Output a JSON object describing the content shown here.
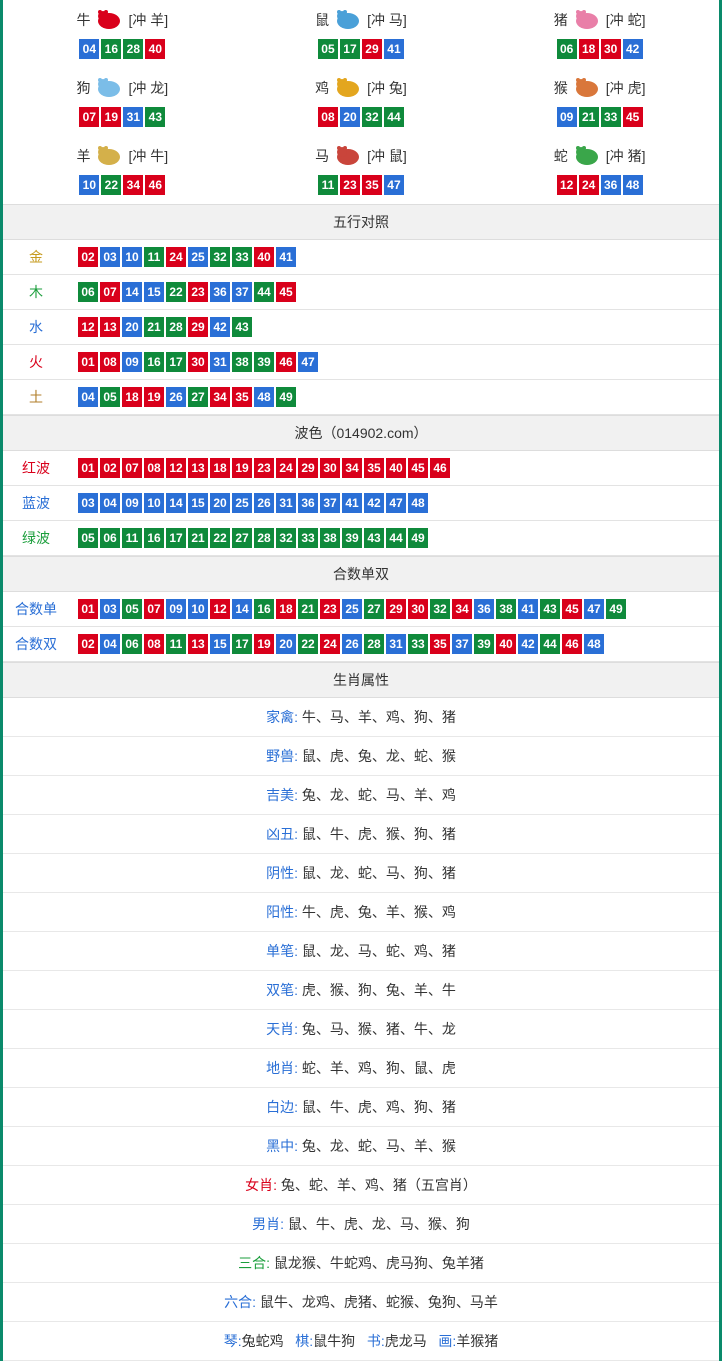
{
  "colors": {
    "red": "#d9001b",
    "blue": "#2a6fd6",
    "green": "#0f8a3b",
    "border": "#0a8a6b"
  },
  "zodiac": [
    {
      "name": "牛",
      "conflict": "[冲 羊]",
      "icon": "ox",
      "iconColor": "#d9001b",
      "nums": [
        {
          "n": "04",
          "c": "b"
        },
        {
          "n": "16",
          "c": "g"
        },
        {
          "n": "28",
          "c": "g"
        },
        {
          "n": "40",
          "c": "r"
        }
      ]
    },
    {
      "name": "鼠",
      "conflict": "[冲 马]",
      "icon": "rat",
      "iconColor": "#4aa0d8",
      "nums": [
        {
          "n": "05",
          "c": "g"
        },
        {
          "n": "17",
          "c": "g"
        },
        {
          "n": "29",
          "c": "r"
        },
        {
          "n": "41",
          "c": "b"
        }
      ]
    },
    {
      "name": "猪",
      "conflict": "[冲 蛇]",
      "icon": "pig",
      "iconColor": "#e97fa8",
      "nums": [
        {
          "n": "06",
          "c": "g"
        },
        {
          "n": "18",
          "c": "r"
        },
        {
          "n": "30",
          "c": "r"
        },
        {
          "n": "42",
          "c": "b"
        }
      ]
    },
    {
      "name": "狗",
      "conflict": "[冲 龙]",
      "icon": "dog",
      "iconColor": "#7bbde8",
      "nums": [
        {
          "n": "07",
          "c": "r"
        },
        {
          "n": "19",
          "c": "r"
        },
        {
          "n": "31",
          "c": "b"
        },
        {
          "n": "43",
          "c": "g"
        }
      ]
    },
    {
      "name": "鸡",
      "conflict": "[冲 兔]",
      "icon": "rooster",
      "iconColor": "#e3a61f",
      "nums": [
        {
          "n": "08",
          "c": "r"
        },
        {
          "n": "20",
          "c": "b"
        },
        {
          "n": "32",
          "c": "g"
        },
        {
          "n": "44",
          "c": "g"
        }
      ]
    },
    {
      "name": "猴",
      "conflict": "[冲 虎]",
      "icon": "monkey",
      "iconColor": "#d9773b",
      "nums": [
        {
          "n": "09",
          "c": "b"
        },
        {
          "n": "21",
          "c": "g"
        },
        {
          "n": "33",
          "c": "g"
        },
        {
          "n": "45",
          "c": "r"
        }
      ]
    },
    {
      "name": "羊",
      "conflict": "[冲 牛]",
      "icon": "goat",
      "iconColor": "#d4b04a",
      "nums": [
        {
          "n": "10",
          "c": "b"
        },
        {
          "n": "22",
          "c": "g"
        },
        {
          "n": "34",
          "c": "r"
        },
        {
          "n": "46",
          "c": "r"
        }
      ]
    },
    {
      "name": "马",
      "conflict": "[冲 鼠]",
      "icon": "horse",
      "iconColor": "#c9453b",
      "nums": [
        {
          "n": "11",
          "c": "g"
        },
        {
          "n": "23",
          "c": "r"
        },
        {
          "n": "35",
          "c": "r"
        },
        {
          "n": "47",
          "c": "b"
        }
      ]
    },
    {
      "name": "蛇",
      "conflict": "[冲 猪]",
      "icon": "snake",
      "iconColor": "#3aa64a",
      "nums": [
        {
          "n": "12",
          "c": "r"
        },
        {
          "n": "24",
          "c": "r"
        },
        {
          "n": "36",
          "c": "b"
        },
        {
          "n": "48",
          "c": "b"
        }
      ]
    }
  ],
  "sections": {
    "wuxing": {
      "title": "五行对照",
      "rows": [
        {
          "label": "金",
          "labelClass": "gold",
          "nums": [
            {
              "n": "02",
              "c": "r"
            },
            {
              "n": "03",
              "c": "b"
            },
            {
              "n": "10",
              "c": "b"
            },
            {
              "n": "11",
              "c": "g"
            },
            {
              "n": "24",
              "c": "r"
            },
            {
              "n": "25",
              "c": "b"
            },
            {
              "n": "32",
              "c": "g"
            },
            {
              "n": "33",
              "c": "g"
            },
            {
              "n": "40",
              "c": "r"
            },
            {
              "n": "41",
              "c": "b"
            }
          ]
        },
        {
          "label": "木",
          "labelClass": "wood",
          "nums": [
            {
              "n": "06",
              "c": "g"
            },
            {
              "n": "07",
              "c": "r"
            },
            {
              "n": "14",
              "c": "b"
            },
            {
              "n": "15",
              "c": "b"
            },
            {
              "n": "22",
              "c": "g"
            },
            {
              "n": "23",
              "c": "r"
            },
            {
              "n": "36",
              "c": "b"
            },
            {
              "n": "37",
              "c": "b"
            },
            {
              "n": "44",
              "c": "g"
            },
            {
              "n": "45",
              "c": "r"
            }
          ]
        },
        {
          "label": "水",
          "labelClass": "water",
          "nums": [
            {
              "n": "12",
              "c": "r"
            },
            {
              "n": "13",
              "c": "r"
            },
            {
              "n": "20",
              "c": "b"
            },
            {
              "n": "21",
              "c": "g"
            },
            {
              "n": "28",
              "c": "g"
            },
            {
              "n": "29",
              "c": "r"
            },
            {
              "n": "42",
              "c": "b"
            },
            {
              "n": "43",
              "c": "g"
            }
          ]
        },
        {
          "label": "火",
          "labelClass": "fire",
          "nums": [
            {
              "n": "01",
              "c": "r"
            },
            {
              "n": "08",
              "c": "r"
            },
            {
              "n": "09",
              "c": "b"
            },
            {
              "n": "16",
              "c": "g"
            },
            {
              "n": "17",
              "c": "g"
            },
            {
              "n": "30",
              "c": "r"
            },
            {
              "n": "31",
              "c": "b"
            },
            {
              "n": "38",
              "c": "g"
            },
            {
              "n": "39",
              "c": "g"
            },
            {
              "n": "46",
              "c": "r"
            },
            {
              "n": "47",
              "c": "b"
            }
          ]
        },
        {
          "label": "土",
          "labelClass": "earth",
          "nums": [
            {
              "n": "04",
              "c": "b"
            },
            {
              "n": "05",
              "c": "g"
            },
            {
              "n": "18",
              "c": "r"
            },
            {
              "n": "19",
              "c": "r"
            },
            {
              "n": "26",
              "c": "b"
            },
            {
              "n": "27",
              "c": "g"
            },
            {
              "n": "34",
              "c": "r"
            },
            {
              "n": "35",
              "c": "r"
            },
            {
              "n": "48",
              "c": "b"
            },
            {
              "n": "49",
              "c": "g"
            }
          ]
        }
      ]
    },
    "bose": {
      "title": "波色（014902.com）",
      "rows": [
        {
          "label": "红波",
          "labelClass": "red-lab",
          "nums": [
            {
              "n": "01",
              "c": "r"
            },
            {
              "n": "02",
              "c": "r"
            },
            {
              "n": "07",
              "c": "r"
            },
            {
              "n": "08",
              "c": "r"
            },
            {
              "n": "12",
              "c": "r"
            },
            {
              "n": "13",
              "c": "r"
            },
            {
              "n": "18",
              "c": "r"
            },
            {
              "n": "19",
              "c": "r"
            },
            {
              "n": "23",
              "c": "r"
            },
            {
              "n": "24",
              "c": "r"
            },
            {
              "n": "29",
              "c": "r"
            },
            {
              "n": "30",
              "c": "r"
            },
            {
              "n": "34",
              "c": "r"
            },
            {
              "n": "35",
              "c": "r"
            },
            {
              "n": "40",
              "c": "r"
            },
            {
              "n": "45",
              "c": "r"
            },
            {
              "n": "46",
              "c": "r"
            }
          ]
        },
        {
          "label": "蓝波",
          "labelClass": "blue-lab",
          "nums": [
            {
              "n": "03",
              "c": "b"
            },
            {
              "n": "04",
              "c": "b"
            },
            {
              "n": "09",
              "c": "b"
            },
            {
              "n": "10",
              "c": "b"
            },
            {
              "n": "14",
              "c": "b"
            },
            {
              "n": "15",
              "c": "b"
            },
            {
              "n": "20",
              "c": "b"
            },
            {
              "n": "25",
              "c": "b"
            },
            {
              "n": "26",
              "c": "b"
            },
            {
              "n": "31",
              "c": "b"
            },
            {
              "n": "36",
              "c": "b"
            },
            {
              "n": "37",
              "c": "b"
            },
            {
              "n": "41",
              "c": "b"
            },
            {
              "n": "42",
              "c": "b"
            },
            {
              "n": "47",
              "c": "b"
            },
            {
              "n": "48",
              "c": "b"
            }
          ]
        },
        {
          "label": "绿波",
          "labelClass": "green-lab",
          "nums": [
            {
              "n": "05",
              "c": "g"
            },
            {
              "n": "06",
              "c": "g"
            },
            {
              "n": "11",
              "c": "g"
            },
            {
              "n": "16",
              "c": "g"
            },
            {
              "n": "17",
              "c": "g"
            },
            {
              "n": "21",
              "c": "g"
            },
            {
              "n": "22",
              "c": "g"
            },
            {
              "n": "27",
              "c": "g"
            },
            {
              "n": "28",
              "c": "g"
            },
            {
              "n": "32",
              "c": "g"
            },
            {
              "n": "33",
              "c": "g"
            },
            {
              "n": "38",
              "c": "g"
            },
            {
              "n": "39",
              "c": "g"
            },
            {
              "n": "43",
              "c": "g"
            },
            {
              "n": "44",
              "c": "g"
            },
            {
              "n": "49",
              "c": "g"
            }
          ]
        }
      ]
    },
    "heshu": {
      "title": "合数单双",
      "rows": [
        {
          "label": "合数单",
          "labelClass": "blue-lab",
          "nums": [
            {
              "n": "01",
              "c": "r"
            },
            {
              "n": "03",
              "c": "b"
            },
            {
              "n": "05",
              "c": "g"
            },
            {
              "n": "07",
              "c": "r"
            },
            {
              "n": "09",
              "c": "b"
            },
            {
              "n": "10",
              "c": "b"
            },
            {
              "n": "12",
              "c": "r"
            },
            {
              "n": "14",
              "c": "b"
            },
            {
              "n": "16",
              "c": "g"
            },
            {
              "n": "18",
              "c": "r"
            },
            {
              "n": "21",
              "c": "g"
            },
            {
              "n": "23",
              "c": "r"
            },
            {
              "n": "25",
              "c": "b"
            },
            {
              "n": "27",
              "c": "g"
            },
            {
              "n": "29",
              "c": "r"
            },
            {
              "n": "30",
              "c": "r"
            },
            {
              "n": "32",
              "c": "g"
            },
            {
              "n": "34",
              "c": "r"
            },
            {
              "n": "36",
              "c": "b"
            },
            {
              "n": "38",
              "c": "g"
            },
            {
              "n": "41",
              "c": "b"
            },
            {
              "n": "43",
              "c": "g"
            },
            {
              "n": "45",
              "c": "r"
            },
            {
              "n": "47",
              "c": "b"
            },
            {
              "n": "49",
              "c": "g"
            }
          ]
        },
        {
          "label": "合数双",
          "labelClass": "blue-lab",
          "nums": [
            {
              "n": "02",
              "c": "r"
            },
            {
              "n": "04",
              "c": "b"
            },
            {
              "n": "06",
              "c": "g"
            },
            {
              "n": "08",
              "c": "r"
            },
            {
              "n": "11",
              "c": "g"
            },
            {
              "n": "13",
              "c": "r"
            },
            {
              "n": "15",
              "c": "b"
            },
            {
              "n": "17",
              "c": "g"
            },
            {
              "n": "19",
              "c": "r"
            },
            {
              "n": "20",
              "c": "b"
            },
            {
              "n": "22",
              "c": "g"
            },
            {
              "n": "24",
              "c": "r"
            },
            {
              "n": "26",
              "c": "b"
            },
            {
              "n": "28",
              "c": "g"
            },
            {
              "n": "31",
              "c": "b"
            },
            {
              "n": "33",
              "c": "g"
            },
            {
              "n": "35",
              "c": "r"
            },
            {
              "n": "37",
              "c": "b"
            },
            {
              "n": "39",
              "c": "g"
            },
            {
              "n": "40",
              "c": "r"
            },
            {
              "n": "42",
              "c": "b"
            },
            {
              "n": "44",
              "c": "g"
            },
            {
              "n": "46",
              "c": "r"
            },
            {
              "n": "48",
              "c": "b"
            }
          ]
        }
      ]
    },
    "shengxiao": {
      "title": "生肖属性",
      "rows": [
        {
          "key": "家禽:",
          "keyClass": "attr-key",
          "val": "牛、马、羊、鸡、狗、猪"
        },
        {
          "key": "野兽:",
          "keyClass": "attr-key",
          "val": "鼠、虎、兔、龙、蛇、猴"
        },
        {
          "key": "吉美:",
          "keyClass": "attr-key",
          "val": "兔、龙、蛇、马、羊、鸡"
        },
        {
          "key": "凶丑:",
          "keyClass": "attr-key",
          "val": "鼠、牛、虎、猴、狗、猪"
        },
        {
          "key": "阴性:",
          "keyClass": "attr-key",
          "val": "鼠、龙、蛇、马、狗、猪"
        },
        {
          "key": "阳性:",
          "keyClass": "attr-key",
          "val": "牛、虎、兔、羊、猴、鸡"
        },
        {
          "key": "单笔:",
          "keyClass": "attr-key",
          "val": "鼠、龙、马、蛇、鸡、猪"
        },
        {
          "key": "双笔:",
          "keyClass": "attr-key",
          "val": "虎、猴、狗、兔、羊、牛"
        },
        {
          "key": "天肖:",
          "keyClass": "attr-key",
          "val": "兔、马、猴、猪、牛、龙"
        },
        {
          "key": "地肖:",
          "keyClass": "attr-key",
          "val": "蛇、羊、鸡、狗、鼠、虎"
        },
        {
          "key": "白边:",
          "keyClass": "attr-key",
          "val": "鼠、牛、虎、鸡、狗、猪"
        },
        {
          "key": "黑中:",
          "keyClass": "attr-key",
          "val": "兔、龙、蛇、马、羊、猴"
        },
        {
          "key": "女肖:",
          "keyClass": "attr-key-red",
          "val": "兔、蛇、羊、鸡、猪（五宫肖）"
        },
        {
          "key": "男肖:",
          "keyClass": "attr-key",
          "val": "鼠、牛、虎、龙、马、猴、狗"
        },
        {
          "key": "三合:",
          "keyClass": "attr-key-green",
          "val": "鼠龙猴、牛蛇鸡、虎马狗、兔羊猪"
        },
        {
          "key": "六合:",
          "keyClass": "attr-key",
          "val": "鼠牛、龙鸡、虎猪、蛇猴、兔狗、马羊"
        }
      ],
      "lastRow": [
        {
          "k": "琴:",
          "kc": "attr-key",
          "v": "兔蛇鸡"
        },
        {
          "k": "棋:",
          "kc": "attr-key",
          "v": "鼠牛狗"
        },
        {
          "k": "书:",
          "kc": "attr-key",
          "v": "虎龙马"
        },
        {
          "k": "画:",
          "kc": "attr-key",
          "v": "羊猴猪"
        }
      ]
    }
  }
}
